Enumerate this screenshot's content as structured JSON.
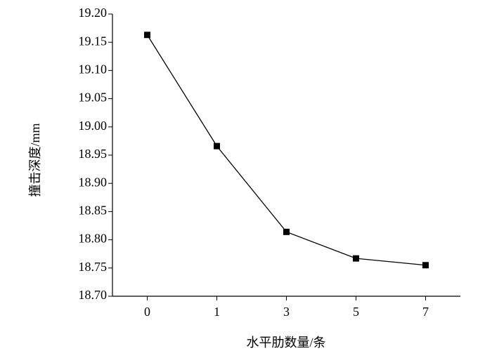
{
  "chart_data": {
    "type": "line",
    "xlabel": "水平肋数量/条",
    "ylabel": "撞击深度/mm",
    "categories": [
      "0",
      "1",
      "3",
      "5",
      "7"
    ],
    "series": [
      {
        "color": "#000000",
        "values": [
          19.163,
          18.966,
          18.814,
          18.767,
          18.755
        ]
      }
    ],
    "ylim": [
      18.7,
      19.2
    ],
    "yticks": [
      {
        "value": 18.7,
        "label": "18.70"
      },
      18.75,
      {
        "value": 18.8,
        "label": "18.80"
      },
      18.85,
      {
        "value": 18.9,
        "label": "18.90"
      },
      18.95,
      {
        "value": 19.0,
        "label": "19.00"
      },
      19.05,
      {
        "value": 19.1,
        "label": "19.10"
      },
      19.15,
      {
        "value": 19.2,
        "label": "19.20"
      }
    ],
    "grid": false
  }
}
